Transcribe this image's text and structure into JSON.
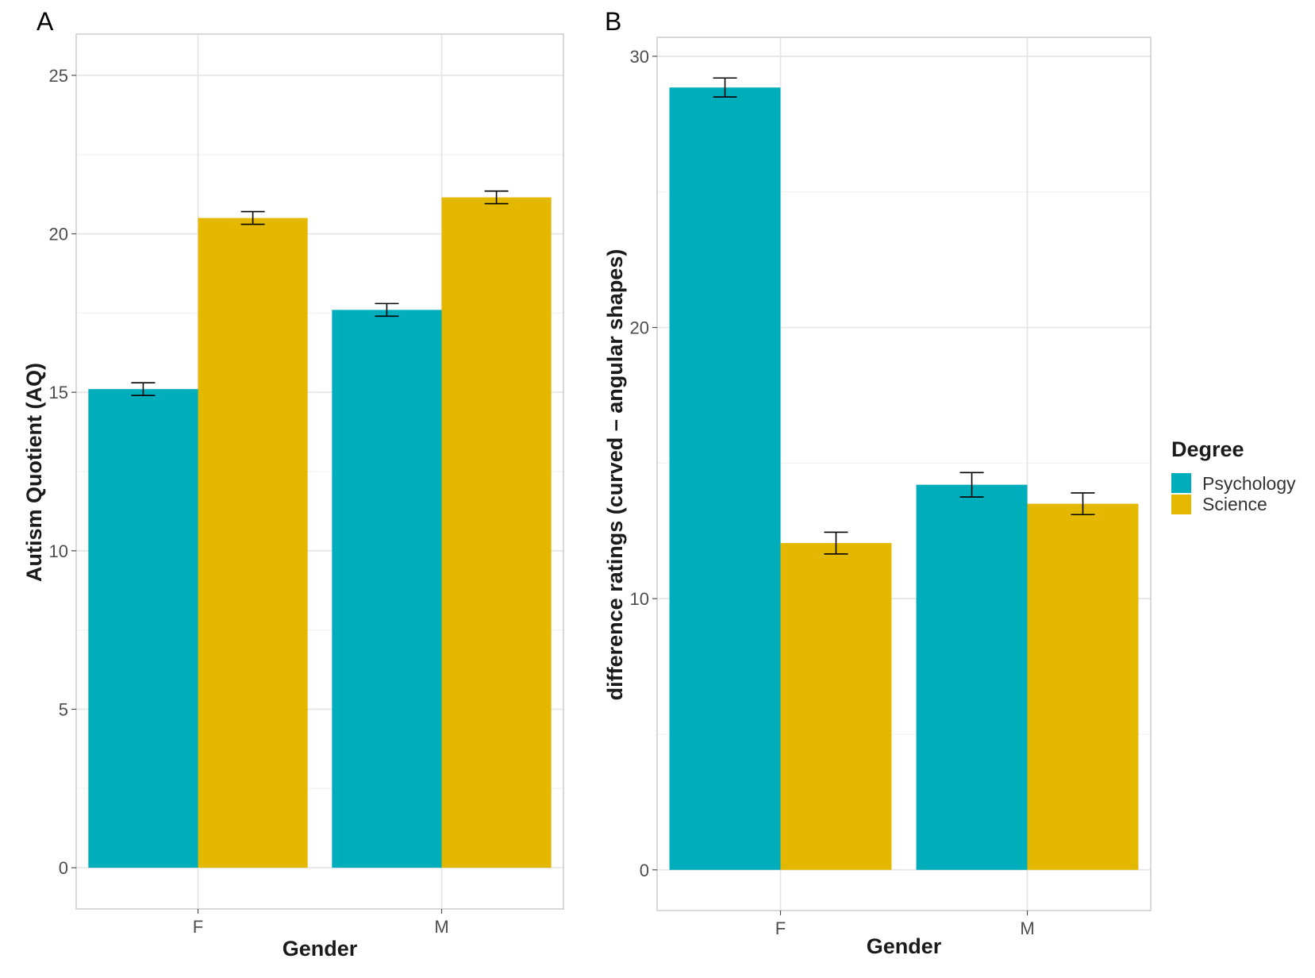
{
  "chart_data": [
    {
      "type": "bar",
      "panel_label": "A",
      "categories": [
        "F",
        "M"
      ],
      "series": [
        {
          "name": "Psychology",
          "values": [
            15.1,
            17.6
          ],
          "errors": [
            0.2,
            0.2
          ]
        },
        {
          "name": "Science",
          "values": [
            20.5,
            21.15
          ],
          "errors": [
            0.2,
            0.2
          ]
        }
      ],
      "xlabel": "Gender",
      "ylabel": "Autism Quotient (AQ)",
      "ylim": [
        -1.3,
        26.3
      ],
      "yticks": [
        "0",
        "5",
        "10",
        "15",
        "20",
        "25"
      ],
      "grid": true
    },
    {
      "type": "bar",
      "panel_label": "B",
      "categories": [
        "F",
        "M"
      ],
      "series": [
        {
          "name": "Psychology",
          "values": [
            28.85,
            14.2
          ],
          "errors": [
            0.35,
            0.45
          ]
        },
        {
          "name": "Science",
          "values": [
            12.05,
            13.5
          ],
          "errors": [
            0.4,
            0.4
          ]
        }
      ],
      "xlabel": "Gender",
      "ylabel": "difference ratings (curved – angular shapes)",
      "ylim": [
        -1.5,
        30.7
      ],
      "yticks": [
        "0",
        "10",
        "20",
        "30"
      ],
      "grid": true
    }
  ],
  "legend": {
    "title": "Degree",
    "placement": "right",
    "items": [
      {
        "label": "Psychology",
        "color": "#00adbb"
      },
      {
        "label": "Science",
        "color": "#e5b800"
      }
    ]
  },
  "colors": {
    "Psychology": "#00adbb",
    "Science": "#e5b800",
    "grid": "#ebebeb",
    "panel_border": "#cccccc",
    "error_bar": "#000000"
  }
}
